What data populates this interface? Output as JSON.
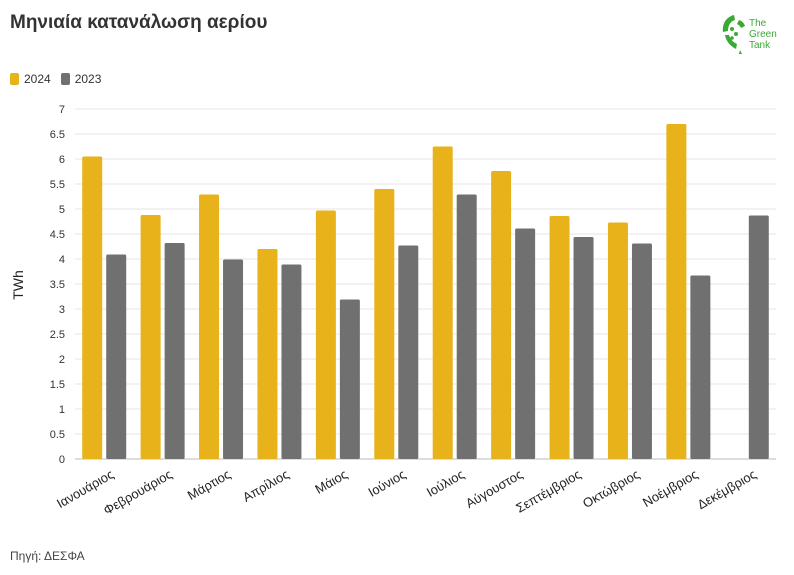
{
  "header": {
    "title": "Μηνιαία κατανάλωση αερίου",
    "logo_text": [
      "The",
      "Green",
      "Tank"
    ]
  },
  "footer": {
    "source": "Πηγή: ΔΕΣΦΑ"
  },
  "colors": {
    "2024": "#e8b21a",
    "2023": "#707070",
    "logo": "#3aaa35"
  },
  "chart_data": {
    "type": "bar",
    "title": "Μηνιαία κατανάλωση αερίου",
    "xlabel": "",
    "ylabel": "TWh",
    "ylim": [
      0,
      7
    ],
    "yticks": [
      "0",
      "0.5",
      "1",
      "1.5",
      "2",
      "2.5",
      "3",
      "3.5",
      "4",
      "4.5",
      "5",
      "5.5",
      "6",
      "6.5",
      "7"
    ],
    "grid": true,
    "legend_position": "top-left",
    "categories": [
      "Ιανουάριος",
      "Φεβρουάριος",
      "Μάρτιος",
      "Απρίλιος",
      "Μάιος",
      "Ιούνιος",
      "Ιούλιος",
      "Αύγουστος",
      "Σεπτέμβριος",
      "Οκτώβριος",
      "Νοέμβριος",
      "Δεκέμβριος"
    ],
    "series": [
      {
        "name": "2024",
        "values": [
          6.05,
          4.88,
          5.29,
          4.2,
          4.97,
          5.4,
          6.25,
          5.76,
          4.86,
          4.73,
          6.7,
          null
        ]
      },
      {
        "name": "2023",
        "values": [
          4.09,
          4.32,
          3.99,
          3.89,
          3.19,
          4.27,
          5.29,
          4.61,
          4.44,
          4.31,
          3.67,
          4.87
        ]
      }
    ]
  }
}
